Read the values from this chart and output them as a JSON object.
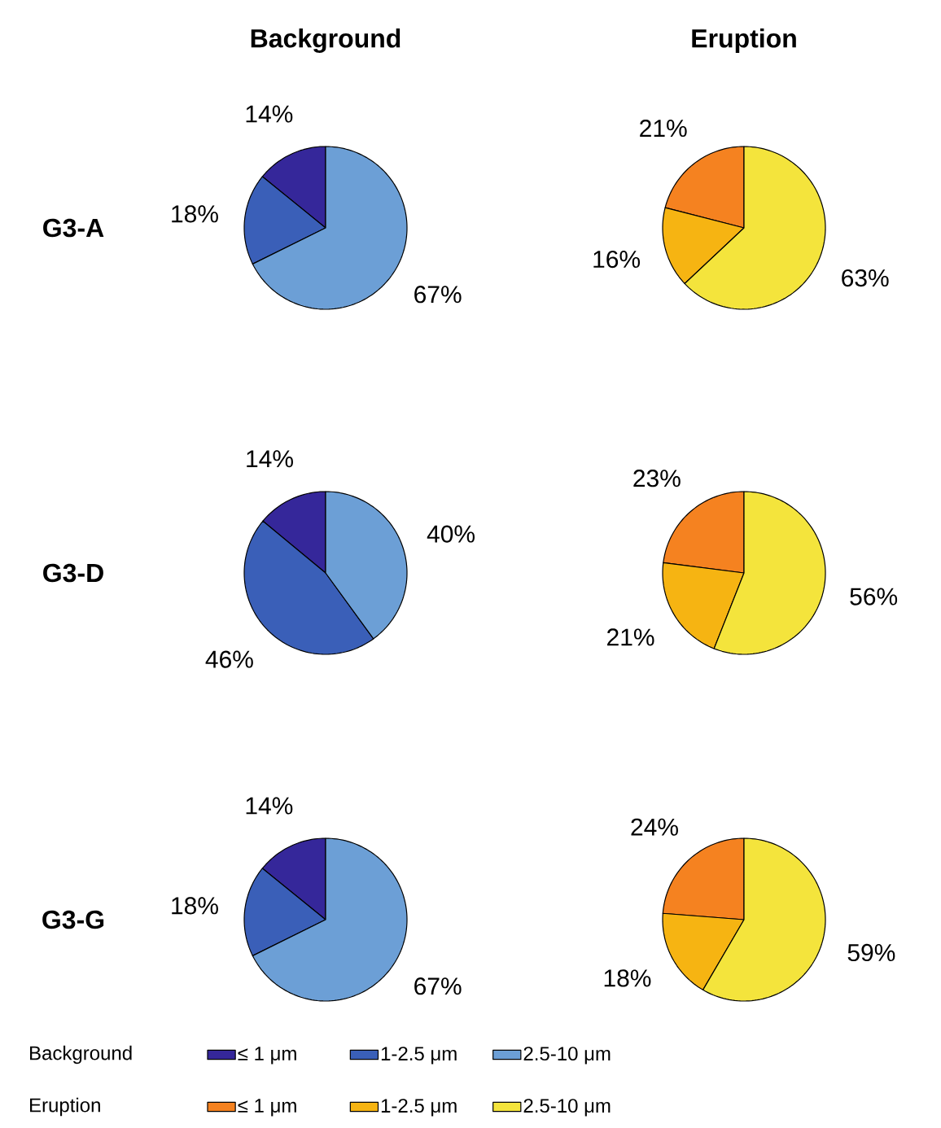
{
  "chart_data": [
    {
      "type": "pie",
      "title": "Background",
      "ylabel": "G3-A",
      "categories": [
        "≤ 1 μm",
        "1-2.5 μm",
        "2.5-10 μm"
      ],
      "values": [
        14,
        18,
        67
      ],
      "value_labels": [
        "14%",
        "18%",
        "67%"
      ],
      "colors": [
        "#35279a",
        "#3a5fb8",
        "#6c9fd6"
      ],
      "legend": "bottom",
      "legend_title": "Background"
    },
    {
      "type": "pie",
      "title": "Eruption",
      "categories": [
        "≤ 1 μm",
        "1-2.5 μm",
        "2.5-10 μm"
      ],
      "values": [
        21,
        16,
        63
      ],
      "value_labels": [
        "21%",
        "16%",
        "63%"
      ],
      "colors": [
        "#f58220",
        "#f6b412",
        "#f4e43c"
      ],
      "legend": "bottom",
      "legend_title": "Eruption"
    },
    {
      "type": "pie",
      "ylabel": "G3-D",
      "categories": [
        null,
        null,
        null
      ],
      "values": [
        14,
        46,
        40
      ],
      "value_labels": [
        "14%",
        "46%",
        "40%"
      ],
      "colors": [
        "#35279a",
        "#3a5fb8",
        "#6c9fd6"
      ]
    },
    {
      "type": "pie",
      "categories": [
        null,
        null,
        null
      ],
      "values": [
        23,
        21,
        56
      ],
      "value_labels": [
        "23%",
        "21%",
        "56%"
      ],
      "colors": [
        "#f58220",
        "#f6b412",
        "#f4e43c"
      ]
    },
    {
      "type": "pie",
      "ylabel": "G3-G",
      "categories": [
        null,
        null,
        null
      ],
      "values": [
        14,
        18,
        67
      ],
      "value_labels": [
        "14%",
        "18%",
        "67%"
      ],
      "colors": [
        "#35279a",
        "#3a5fb8",
        "#6c9fd6"
      ]
    },
    {
      "type": "pie",
      "categories": [
        null,
        null,
        null
      ],
      "values": [
        24,
        18,
        59
      ],
      "value_labels": [
        "24%",
        "18%",
        "59%"
      ],
      "colors": [
        "#f58220",
        "#f6b412",
        "#f4e43c"
      ]
    }
  ]
}
